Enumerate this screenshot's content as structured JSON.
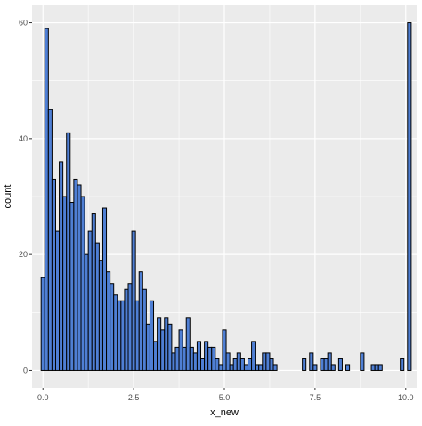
{
  "chart_data": {
    "type": "bar",
    "xlabel": "x_new",
    "ylabel": "count",
    "xlim": [
      -0.3,
      10.3
    ],
    "ylim": [
      -3,
      63
    ],
    "x_ticks": [
      0,
      2.5,
      5,
      7.5,
      10
    ],
    "x_tick_labels": [
      "0.0",
      "2.5",
      "5.0",
      "7.5",
      "10.0"
    ],
    "y_ticks": [
      0,
      20,
      40,
      60
    ],
    "y_tick_labels": [
      "0",
      "20",
      "40",
      "60"
    ],
    "bin_width": 0.1,
    "bin_start": -0.05,
    "values": [
      16,
      59,
      45,
      33,
      24,
      36,
      30,
      41,
      29,
      33,
      32,
      30,
      20,
      24,
      27,
      22,
      19,
      28,
      17,
      15,
      13,
      12,
      12,
      14,
      15,
      24,
      12,
      17,
      14,
      8,
      12,
      5,
      9,
      7,
      9,
      8,
      3,
      4,
      7,
      4,
      9,
      4,
      3,
      5,
      2,
      5,
      4,
      4,
      2,
      1,
      7,
      3,
      1,
      2,
      3,
      2,
      1,
      2,
      5,
      1,
      1,
      3,
      3,
      2,
      1,
      0,
      0,
      0,
      0,
      0,
      0,
      0,
      2,
      0,
      3,
      1,
      0,
      2,
      2,
      3,
      1,
      0,
      2,
      0,
      1,
      0,
      0,
      0,
      3,
      0,
      0,
      1,
      1,
      1,
      0,
      0,
      0,
      0,
      0,
      2,
      0,
      60
    ],
    "panel_background": "#ebebeb",
    "bar_fill": "#4f7fd4",
    "bar_stroke": "#000000",
    "grid": true
  }
}
